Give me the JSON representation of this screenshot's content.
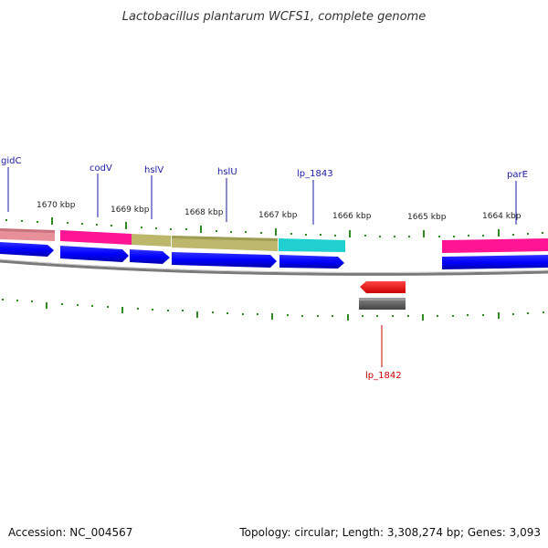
{
  "title": "Lactobacillus plantarum WCFS1, complete genome",
  "footer": {
    "accession": "Accession: NC_004567",
    "topology": "Topology: circular; Length: 3,308,274 bp; Genes: 3,093"
  },
  "scale_labels": [
    "1670 kbp",
    "1669 kbp",
    "1668 kbp",
    "1667 kbp",
    "1666 kbp",
    "1665 kbp",
    "1664 kbp"
  ],
  "gene_labels": [
    {
      "name": "gidC",
      "strand": "forward"
    },
    {
      "name": "codV",
      "strand": "forward"
    },
    {
      "name": "hslV",
      "strand": "forward"
    },
    {
      "name": "hslU",
      "strand": "forward"
    },
    {
      "name": "lp_1843",
      "strand": "forward"
    },
    {
      "name": "parE",
      "strand": "forward"
    },
    {
      "name": "lp_1842",
      "strand": "reverse"
    }
  ],
  "colors": {
    "cds": "#0000ff",
    "reverse_cds": "#ff0000",
    "backbone": "#808080",
    "ticks": "#2e8b22",
    "forward_label": "#1a1aa6",
    "reverse_label": "#cc0000",
    "cog_pink": "#e8909a",
    "cog_magenta": "#ff1493",
    "cog_olive": "#bdb76b",
    "cog_cyan": "#20d0d0",
    "cog_gray": "#666666"
  }
}
